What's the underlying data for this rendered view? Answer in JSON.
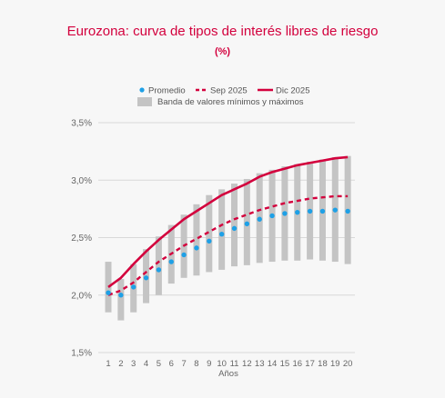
{
  "chart_data": {
    "type": "line",
    "title": "Eurozona: curva de tipos de interés libres de riesgo",
    "subtitle": "(%)",
    "xlabel": "Años",
    "ylabel": "",
    "x": [
      1,
      2,
      3,
      4,
      5,
      6,
      7,
      8,
      9,
      10,
      11,
      12,
      13,
      14,
      15,
      16,
      17,
      18,
      19,
      20
    ],
    "ylim": [
      1.5,
      3.5
    ],
    "yticks": [
      1.5,
      2.0,
      2.5,
      3.0,
      3.5
    ],
    "ytick_labels": [
      "1,5%",
      "2,0%",
      "2,5%",
      "3,0%",
      "3,5%"
    ],
    "grid": "horizontal",
    "legend_position": "top",
    "band": {
      "name": "Banda de valores mínimos y máximos",
      "color": "#c4c4c4",
      "min": [
        1.85,
        1.78,
        1.85,
        1.93,
        2.0,
        2.1,
        2.15,
        2.17,
        2.2,
        2.22,
        2.25,
        2.26,
        2.28,
        2.29,
        2.3,
        2.3,
        2.31,
        2.3,
        2.29,
        2.27
      ],
      "max": [
        2.29,
        2.14,
        2.27,
        2.4,
        2.51,
        2.61,
        2.7,
        2.79,
        2.87,
        2.92,
        2.97,
        3.01,
        3.06,
        3.09,
        3.12,
        3.14,
        3.16,
        3.18,
        3.2,
        3.21
      ]
    },
    "series": [
      {
        "name": "Promedio",
        "style": "dots",
        "color": "#1ea0e6",
        "values": [
          2.02,
          2.0,
          2.07,
          2.15,
          2.22,
          2.29,
          2.35,
          2.41,
          2.47,
          2.53,
          2.58,
          2.62,
          2.66,
          2.69,
          2.71,
          2.72,
          2.73,
          2.73,
          2.74,
          2.73
        ]
      },
      {
        "name": "Sep 2025",
        "style": "dashed",
        "color": "#d3003d",
        "values": [
          2.0,
          2.04,
          2.11,
          2.2,
          2.29,
          2.36,
          2.43,
          2.49,
          2.55,
          2.61,
          2.66,
          2.7,
          2.74,
          2.77,
          2.8,
          2.82,
          2.84,
          2.85,
          2.86,
          2.86
        ]
      },
      {
        "name": "Dic 2025",
        "style": "solid",
        "color": "#d3003d",
        "values": [
          2.07,
          2.15,
          2.27,
          2.38,
          2.48,
          2.57,
          2.66,
          2.73,
          2.8,
          2.87,
          2.92,
          2.97,
          3.03,
          3.07,
          3.1,
          3.13,
          3.15,
          3.17,
          3.19,
          3.2
        ]
      }
    ]
  }
}
